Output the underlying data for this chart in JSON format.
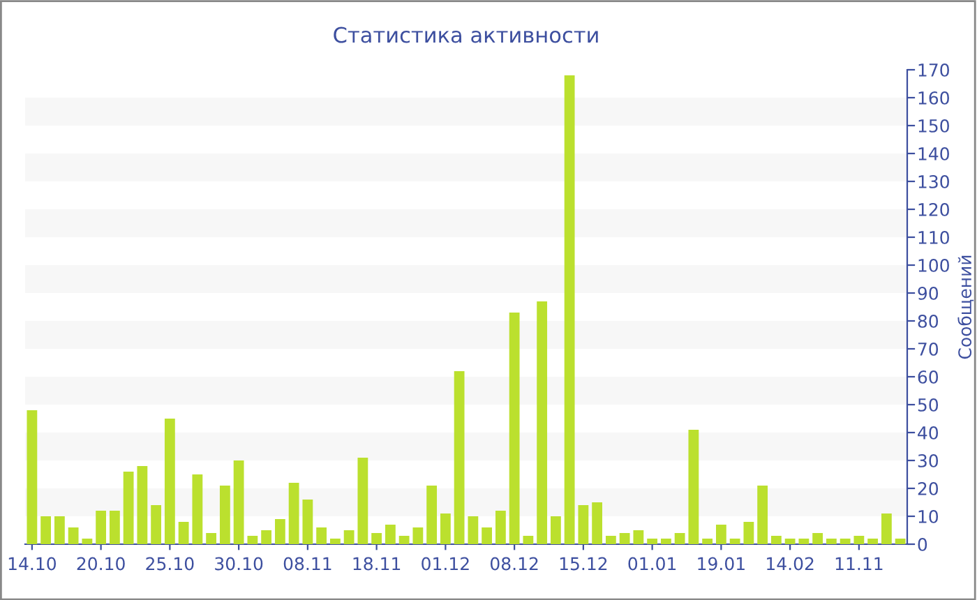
{
  "chart_data": {
    "type": "bar",
    "title": "Статистика активности",
    "ylabel": "Сообщений",
    "categories": [
      "14.10",
      null,
      null,
      null,
      null,
      "20.10",
      null,
      null,
      null,
      null,
      "25.10",
      null,
      null,
      null,
      null,
      "30.10",
      null,
      null,
      null,
      null,
      "08.11",
      null,
      null,
      null,
      null,
      "18.11",
      null,
      null,
      null,
      null,
      "01.12",
      null,
      null,
      null,
      null,
      "08.12",
      null,
      null,
      null,
      null,
      "15.12",
      null,
      null,
      null,
      null,
      "01.01",
      null,
      null,
      null,
      null,
      "19.01",
      null,
      null,
      null,
      null,
      "14.02",
      null,
      null,
      null,
      null,
      "11.11",
      null,
      null,
      null
    ],
    "values": [
      48,
      10,
      10,
      6,
      2,
      12,
      12,
      26,
      28,
      14,
      45,
      8,
      25,
      4,
      21,
      30,
      3,
      5,
      9,
      22,
      16,
      6,
      2,
      5,
      31,
      4,
      7,
      3,
      6,
      21,
      11,
      62,
      10,
      6,
      12,
      83,
      3,
      87,
      10,
      168,
      14,
      15,
      3,
      4,
      5,
      2,
      2,
      4,
      41,
      2,
      7,
      2,
      8,
      21,
      3,
      2,
      2,
      4,
      2,
      2,
      3,
      2,
      11,
      2
    ],
    "color": "#bbe02e",
    "ylim": [
      0,
      170
    ],
    "yticks": [
      0,
      10,
      20,
      30,
      40,
      50,
      60,
      70,
      80,
      90,
      100,
      110,
      120,
      130,
      140,
      150,
      160,
      170
    ],
    "bands": [
      {
        "axis": "y",
        "from": 10,
        "to": 20,
        "color": "#f7f7f7"
      },
      {
        "axis": "y",
        "from": 30,
        "to": 40,
        "color": "#f7f7f7"
      },
      {
        "axis": "y",
        "from": 50,
        "to": 60,
        "color": "#f7f7f7"
      },
      {
        "axis": "y",
        "from": 70,
        "to": 80,
        "color": "#f7f7f7"
      },
      {
        "axis": "y",
        "from": 90,
        "to": 100,
        "color": "#f7f7f7"
      },
      {
        "axis": "y",
        "from": 110,
        "to": 120,
        "color": "#f7f7f7"
      },
      {
        "axis": "y",
        "from": 130,
        "to": 140,
        "color": "#f7f7f7"
      },
      {
        "axis": "y",
        "from": 150,
        "to": 160,
        "color": "#f7f7f7"
      }
    ]
  }
}
